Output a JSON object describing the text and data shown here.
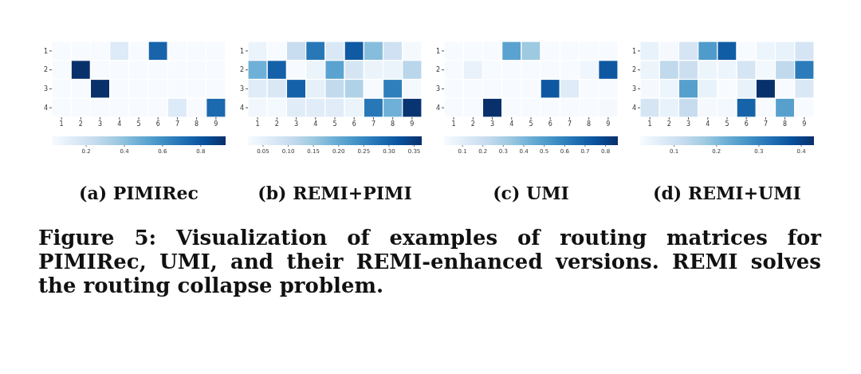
{
  "chart_data": [
    {
      "type": "heatmap",
      "title": "(a) PIMIRec",
      "categories": [
        "1",
        "2",
        "3",
        "4",
        "5",
        "6",
        "7",
        "8",
        "9"
      ],
      "y_categories": [
        "1",
        "2",
        "3",
        "4"
      ],
      "cells": [
        [
          0.02,
          0.02,
          0.02,
          0.14,
          0.02,
          0.75,
          0.02,
          0.02,
          0.02
        ],
        [
          0.02,
          0.93,
          0.02,
          0.02,
          0.02,
          0.02,
          0.02,
          0.02,
          0.02
        ],
        [
          0.02,
          0.02,
          0.93,
          0.02,
          0.02,
          0.02,
          0.02,
          0.02,
          0.02
        ],
        [
          0.02,
          0.02,
          0.02,
          0.02,
          0.02,
          0.02,
          0.14,
          0.02,
          0.73
        ]
      ],
      "clim": [
        0.02,
        0.93
      ],
      "cticks": [
        0.2,
        0.4,
        0.6,
        0.8
      ]
    },
    {
      "type": "heatmap",
      "title": "(b) REMI+PIMI",
      "categories": [
        "1",
        "2",
        "3",
        "4",
        "5",
        "6",
        "7",
        "8",
        "9"
      ],
      "y_categories": [
        "1",
        "2",
        "3",
        "4"
      ],
      "cells": [
        [
          0.04,
          0.02,
          0.1,
          0.27,
          0.07,
          0.31,
          0.17,
          0.09,
          0.025
        ],
        [
          0.19,
          0.3,
          0.02,
          0.04,
          0.21,
          0.08,
          0.04,
          0.04,
          0.12
        ],
        [
          0.06,
          0.07,
          0.3,
          0.05,
          0.11,
          0.13,
          0.02,
          0.26,
          0.025
        ],
        [
          0.03,
          0.025,
          0.06,
          0.06,
          0.06,
          0.04,
          0.27,
          0.19,
          0.36
        ]
      ],
      "clim": [
        0.02,
        0.365
      ],
      "cticks": [
        0.05,
        {
          "value": 0.1,
          "label": "0.10"
        },
        0.15,
        {
          "value": 0.2,
          "label": "0.20"
        },
        0.25,
        {
          "value": 0.3,
          "label": "0.30"
        },
        0.35
      ]
    },
    {
      "type": "heatmap",
      "title": "(c) UMI",
      "categories": [
        "1",
        "2",
        "3",
        "4",
        "5",
        "6",
        "7",
        "8",
        "9"
      ],
      "y_categories": [
        "1",
        "2",
        "3",
        "4"
      ],
      "cells": [
        [
          0.01,
          0.01,
          0.01,
          0.48,
          0.33,
          0.01,
          0.01,
          0.01,
          0.01
        ],
        [
          0.01,
          0.07,
          0.01,
          0.01,
          0.01,
          0.01,
          0.01,
          0.04,
          0.73
        ],
        [
          0.01,
          0.01,
          0.01,
          0.01,
          0.01,
          0.73,
          0.11,
          0.01,
          0.01
        ],
        [
          0.01,
          0.01,
          0.86,
          0.01,
          0.01,
          0.01,
          0.01,
          0.01,
          0.02
        ]
      ],
      "clim": [
        0.01,
        0.86
      ],
      "cticks": [
        0.1,
        0.2,
        0.3,
        0.4,
        0.5,
        0.6,
        0.7,
        0.8
      ]
    },
    {
      "type": "heatmap",
      "title": "(d) REMI+UMI",
      "categories": [
        "1",
        "2",
        "3",
        "4",
        "5",
        "6",
        "7",
        "8",
        "9"
      ],
      "y_categories": [
        "1",
        "2",
        "3",
        "4"
      ],
      "cells": [
        [
          0.05,
          0.025,
          0.09,
          0.26,
          0.36,
          0.02,
          0.04,
          0.05,
          0.09
        ],
        [
          0.04,
          0.13,
          0.11,
          0.04,
          0.04,
          0.09,
          0.03,
          0.13,
          0.31
        ],
        [
          0.025,
          0.04,
          0.25,
          0.05,
          0.02,
          0.05,
          0.43,
          0.02,
          0.08
        ],
        [
          0.09,
          0.05,
          0.12,
          0.025,
          0.03,
          0.35,
          0.02,
          0.25,
          0.02
        ]
      ],
      "clim": [
        0.02,
        0.43
      ],
      "cticks": [
        0.1,
        0.2,
        0.3,
        0.4
      ],
      "annotations": [
        "Figure 5: Visualization of examples of routing matrices for PIMIRec, UMI, and their REMI-enhanced versions. REMI solves the routing collapse problem."
      ]
    }
  ]
}
